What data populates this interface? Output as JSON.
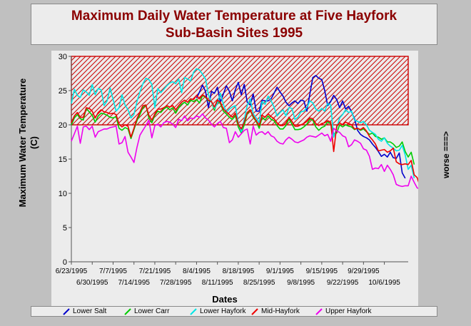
{
  "title": {
    "line1": "Maximum Daily Water Temperature at Five Hayfork",
    "line2": "Sub-Basin Sites 1995"
  },
  "worse_label": "worse ===>",
  "chart_data": {
    "type": "line",
    "xlabel": "Dates",
    "ylabel_lines": [
      "Maximum Water Temperature",
      "(C)"
    ],
    "ylim": [
      0,
      30
    ],
    "y_ticks": [
      0,
      5,
      10,
      15,
      20,
      25,
      30
    ],
    "x_ticks_top": [
      "6/23/1995",
      "7/7/1995",
      "7/21/1995",
      "8/4/1995",
      "8/18/1995",
      "9/1/1995",
      "9/15/1995",
      "9/29/1995"
    ],
    "x_ticks_bottom": [
      "6/30/1995",
      "7/14/1995",
      "7/28/1995",
      "8/11/1995",
      "8/25/1995",
      "9/8/1995",
      "9/22/1995",
      "10/6/1995"
    ],
    "threshold_band": {
      "from": 20,
      "to": 30,
      "color": "#cc0000"
    },
    "x_start": "1995-06-23",
    "x_end": "1995-10-14",
    "series": [
      {
        "name": "Lower Salt",
        "color": "#0000cc",
        "start": "1995-08-04",
        "values": [
          23.9,
          24.8,
          25.8,
          24.9,
          22.5,
          24.9,
          24.6,
          25.5,
          23.3,
          24.5,
          25.7,
          24.9,
          23.5,
          25.1,
          26.2,
          24.4,
          25.9,
          23.3,
          22.9,
          24.5,
          22.0,
          22.0,
          23.6,
          23.5,
          23.5,
          23.8,
          24.6,
          25.5,
          24.8,
          24.2,
          23.3,
          22.8,
          23.2,
          23.5,
          23.1,
          23.6,
          23.5,
          22.0,
          24.5,
          26.9,
          27.2,
          26.8,
          26.6,
          25.0,
          22.8,
          23.4,
          24.3,
          23.7,
          22.5,
          23.5,
          22.3,
          22.7,
          21.9,
          20.9,
          19.2,
          18.6,
          18.3,
          18.1,
          17.8,
          17.2,
          16.7,
          16.1,
          15.4,
          15.7,
          15.3,
          16.0,
          15.2,
          15.1,
          15.9,
          13.0,
          12.2
        ]
      },
      {
        "name": "Lower Carr",
        "color": "#00cc00",
        "values": [
          20.0,
          21.0,
          21.5,
          20.9,
          20.7,
          22.4,
          21.9,
          21.4,
          20.4,
          21.3,
          21.7,
          21.6,
          21.4,
          21.1,
          21.0,
          21.2,
          19.5,
          19.2,
          19.6,
          19.4,
          18.0,
          19.3,
          20.6,
          21.5,
          22.5,
          22.9,
          21.0,
          20.3,
          21.4,
          22.0,
          21.8,
          22.3,
          22.6,
          22.2,
          22.5,
          21.7,
          22.5,
          23.0,
          23.3,
          22.9,
          23.6,
          23.4,
          23.7,
          23.2,
          24.3,
          24.0,
          23.5,
          23.4,
          22.1,
          23.5,
          23.1,
          22.0,
          21.6,
          21.1,
          20.8,
          21.4,
          19.7,
          18.8,
          20.0,
          21.6,
          22.2,
          21.1,
          20.5,
          19.5,
          21.1,
          20.7,
          21.3,
          20.8,
          20.6,
          19.9,
          19.4,
          19.4,
          19.9,
          20.9,
          20.1,
          19.3,
          19.3,
          19.4,
          19.7,
          20.1,
          20.8,
          20.7,
          19.7,
          19.2,
          19.6,
          19.8,
          20.5,
          20.1,
          18.7,
          18.8,
          20.0,
          19.7,
          20.0,
          19.8,
          19.7,
          19.3,
          19.5,
          19.2,
          19.4,
          19.0,
          18.6,
          18.8,
          18.3,
          18.2,
          17.9,
          18.1,
          17.5,
          17.5,
          17.2,
          16.7,
          16.9,
          17.5,
          16.1,
          15.3,
          16.0,
          14.2
        ]
      },
      {
        "name": "Lower Hayfork",
        "color": "#00e6e6",
        "values": [
          23.1,
          25.2,
          24.3,
          24.0,
          25.1,
          24.8,
          24.3,
          25.9,
          24.4,
          25.3,
          25.1,
          22.8,
          23.5,
          25.4,
          23.7,
          22.0,
          22.5,
          24.4,
          22.9,
          22.2,
          21.0,
          21.5,
          23.4,
          24.8,
          26.0,
          26.8,
          26.6,
          25.9,
          22.5,
          25.3,
          24.7,
          25.2,
          25.7,
          26.1,
          26.3,
          26.0,
          26.7,
          24.7,
          26.9,
          26.7,
          26.4,
          27.7,
          28.2,
          28.0,
          27.4,
          26.7,
          24.4,
          23.3,
          22.4,
          23.1,
          24.6,
          23.0,
          21.8,
          22.3,
          22.6,
          22.8,
          20.3,
          19.0,
          20.8,
          22.8,
          23.8,
          21.6,
          21.0,
          20.3,
          23.4,
          23.0,
          24.2,
          23.5,
          22.6,
          21.3,
          21.8,
          22.2,
          21.3,
          22.5,
          22.4,
          20.8,
          21.1,
          21.9,
          22.0,
          22.5,
          23.5,
          23.2,
          22.3,
          22.0,
          22.4,
          22.0,
          23.1,
          22.9,
          18.2,
          19.5,
          21.0,
          21.5,
          22.2,
          21.8,
          22.0,
          20.7,
          20.5,
          20.3,
          20.5,
          20.0,
          19.2,
          18.9,
          18.6,
          17.9,
          17.6,
          18.1,
          17.3,
          16.9,
          16.6,
          16.2,
          16.3,
          17.0,
          15.6,
          13.5,
          14.1,
          12.2
        ]
      },
      {
        "name": "Mid-Hayfork",
        "color": "#ee0000",
        "values": [
          20.3,
          21.3,
          21.8,
          21.1,
          21.1,
          22.5,
          22.4,
          22.0,
          21.0,
          21.8,
          22.2,
          21.9,
          21.8,
          21.6,
          21.7,
          21.5,
          20.1,
          19.7,
          20.0,
          19.8,
          18.2,
          19.5,
          20.9,
          21.9,
          22.8,
          22.9,
          21.4,
          20.7,
          21.6,
          22.3,
          22.3,
          22.5,
          22.8,
          22.6,
          22.8,
          22.2,
          22.8,
          23.3,
          23.6,
          23.3,
          23.8,
          23.7,
          24.3,
          23.8,
          24.4,
          24.1,
          23.6,
          23.4,
          22.6,
          23.6,
          23.3,
          22.3,
          21.9,
          21.5,
          21.1,
          21.7,
          20.1,
          19.4,
          20.4,
          21.8,
          22.2,
          21.3,
          20.6,
          19.9,
          21.4,
          21.1,
          21.6,
          21.2,
          20.9,
          20.3,
          19.9,
          19.9,
          20.3,
          21.1,
          20.5,
          19.8,
          19.8,
          20.0,
          20.2,
          20.5,
          21.0,
          20.9,
          20.2,
          19.9,
          20.2,
          20.3,
          20.6,
          20.4,
          16.1,
          19.8,
          20.3,
          20.0,
          20.4,
          20.2,
          20.0,
          19.4,
          19.5,
          19.3,
          19.6,
          19.1,
          18.3,
          17.8,
          17.2,
          16.2,
          16.3,
          16.4,
          16.0,
          16.2,
          16.6,
          14.6,
          14.3,
          14.2,
          14.3,
          14.2,
          14.8,
          12.7,
          12.3,
          11.0
        ]
      },
      {
        "name": "Upper Hayfork",
        "color": "#ee00ee",
        "values": [
          17.6,
          18.7,
          19.8,
          17.3,
          19.7,
          19.8,
          19.3,
          19.8,
          18.2,
          19.0,
          19.2,
          19.4,
          19.4,
          19.6,
          19.7,
          19.8,
          17.2,
          17.4,
          18.3,
          16.0,
          15.3,
          14.5,
          16.7,
          18.5,
          19.2,
          19.9,
          20.7,
          18.1,
          19.9,
          20.1,
          19.7,
          20.3,
          20.5,
          20.4,
          20.1,
          19.6,
          20.8,
          20.6,
          21.3,
          20.6,
          21.0,
          20.9,
          21.3,
          21.1,
          21.6,
          21.0,
          20.7,
          20.1,
          19.7,
          20.2,
          20.5,
          19.6,
          19.5,
          17.4,
          17.8,
          19.0,
          18.2,
          18.7,
          19.2,
          19.4,
          17.2,
          19.8,
          18.5,
          18.9,
          19.0,
          18.6,
          19.0,
          18.4,
          18.2,
          17.6,
          17.3,
          17.2,
          17.8,
          18.2,
          17.9,
          17.5,
          17.4,
          17.6,
          17.8,
          18.2,
          18.4,
          18.3,
          18.2,
          18.5,
          18.8,
          18.4,
          18.6,
          17.6,
          19.5,
          19.1,
          18.9,
          18.4,
          18.2,
          16.8,
          17.1,
          17.8,
          17.6,
          17.3,
          16.5,
          16.3,
          15.4,
          13.5,
          13.7,
          13.6,
          14.2,
          13.2,
          14.1,
          13.5,
          12.7,
          11.3,
          11.1,
          11.0,
          11.1,
          11.1,
          12.5,
          11.6,
          10.8,
          10.6
        ]
      }
    ]
  }
}
